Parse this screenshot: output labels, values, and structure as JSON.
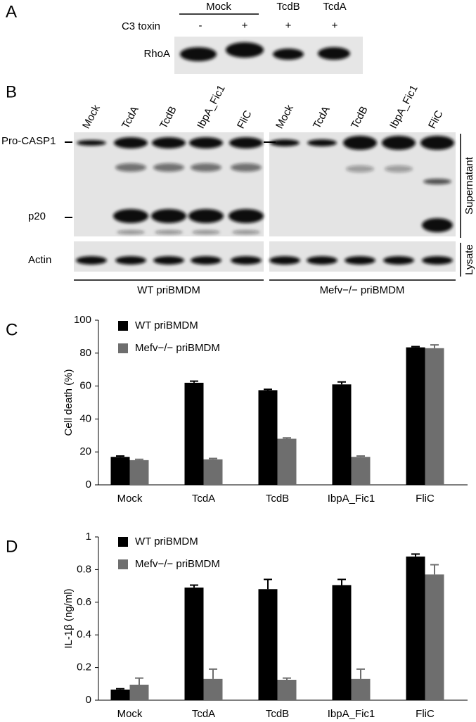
{
  "panels": {
    "A": {
      "label": "A",
      "group_label": "Mock",
      "lanes": [
        "TcdB",
        "TcdA"
      ],
      "row_label": "C3 toxin",
      "toxin": [
        "-",
        "+",
        "+",
        "+"
      ],
      "blot_label": "RhoA"
    },
    "B": {
      "label": "B",
      "lanes": [
        "Mock",
        "TcdA",
        "TcdB",
        "IbpA_Fic1",
        "FliC",
        "Mock",
        "TcdA",
        "TcdB",
        "IbpA_Fic1",
        "FliC"
      ],
      "rows": [
        "Pro-CASP1",
        "p20",
        "Actin"
      ],
      "sections": [
        "Supernatant",
        "Lysate"
      ],
      "groups": [
        "WT priBMDM",
        "Mefv−/− priBMDM"
      ]
    }
  },
  "chart_data": [
    {
      "type": "bar",
      "panel_label": "C",
      "y_label": "Cell death (%)",
      "categories": [
        "Mock",
        "TcdA",
        "TcdB",
        "IbpA_Fic1",
        "FliC"
      ],
      "series": [
        {
          "name": "WT priBMDM",
          "color": "#000000",
          "values": [
            17,
            62,
            57.5,
            61,
            83.5
          ],
          "errors": [
            0.5,
            1,
            0.5,
            1.5,
            0.5
          ]
        },
        {
          "name": "Mefv−/− priBMDM",
          "color": "#6e6e6e",
          "values": [
            15,
            15.5,
            28,
            17,
            83
          ],
          "errors": [
            0.5,
            0.5,
            0.5,
            0.5,
            2
          ]
        }
      ],
      "ylim": [
        0,
        100
      ],
      "yticks": [
        0,
        20,
        40,
        60,
        80,
        100
      ]
    },
    {
      "type": "bar",
      "panel_label": "D",
      "y_label": "IL-1β (ng/ml)",
      "categories": [
        "Mock",
        "TcdA",
        "TcdB",
        "IbpA_Fic1",
        "FliC"
      ],
      "series": [
        {
          "name": "WT priBMDM",
          "color": "#000000",
          "values": [
            0.065,
            0.69,
            0.68,
            0.705,
            0.88
          ],
          "errors": [
            0.005,
            0.015,
            0.06,
            0.035,
            0.015
          ]
        },
        {
          "name": "Mefv−/− priBMDM",
          "color": "#6e6e6e",
          "values": [
            0.095,
            0.13,
            0.125,
            0.13,
            0.77
          ],
          "errors": [
            0.04,
            0.06,
            0.01,
            0.06,
            0.06
          ]
        }
      ],
      "ylim": [
        0,
        1
      ],
      "yticks": [
        0,
        0.2,
        0.4,
        0.6,
        0.8,
        1
      ]
    }
  ]
}
